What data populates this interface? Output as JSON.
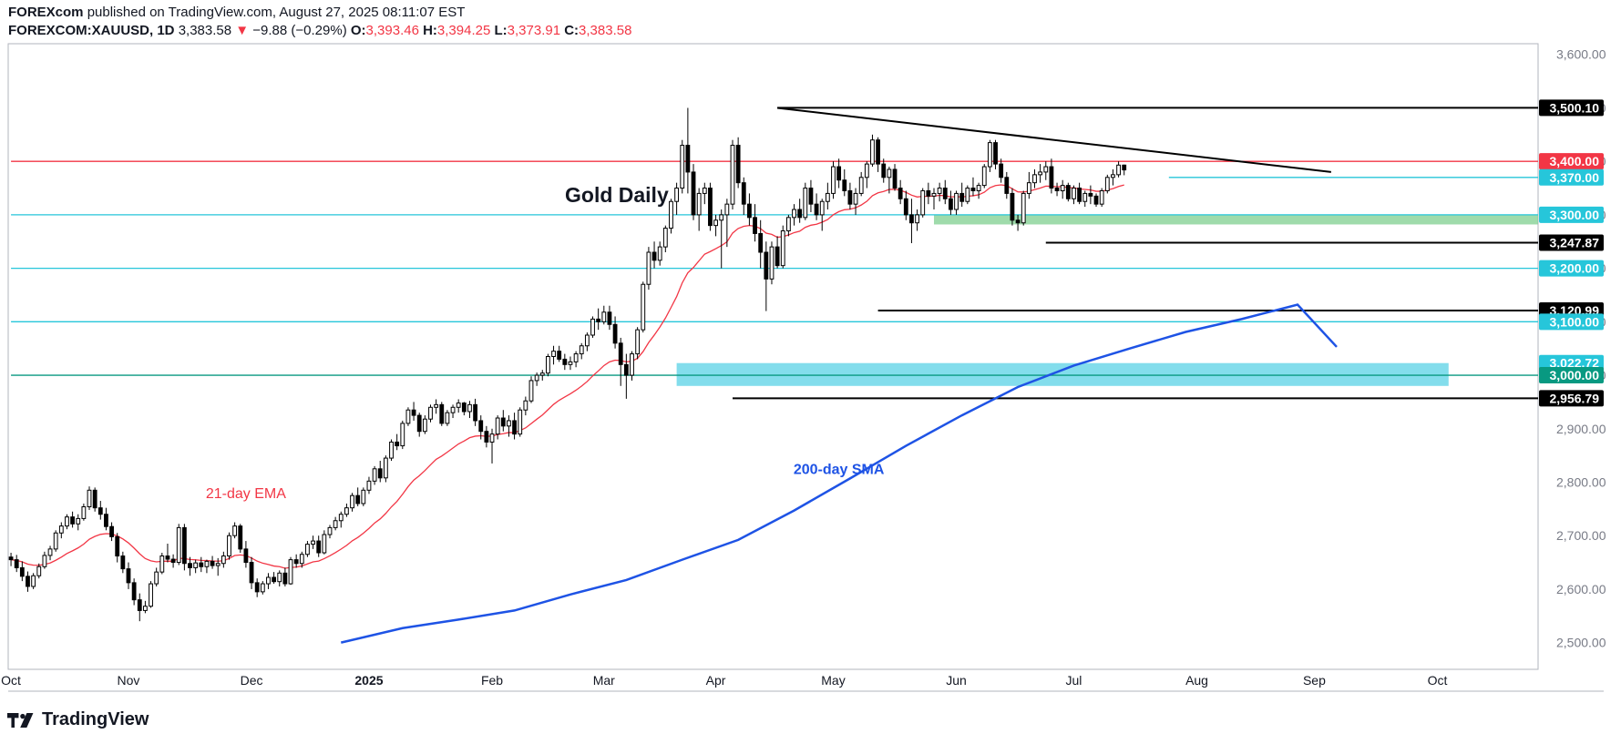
{
  "header": {
    "publisher": "FOREXcom",
    "published_text": "published on TradingView.com, August 27, 2025 08:11:07 EST",
    "symbol": "FOREXCOM:XAUUSD, 1D",
    "last": "3,383.58",
    "change_arrow": "▼",
    "change": "−9.88 (−0.29%)",
    "o_label": "O:",
    "o_value": "3,393.46",
    "h_label": "H:",
    "h_value": "3,394.25",
    "l_label": "L:",
    "l_value": "3,373.91",
    "c_label": "C:",
    "c_value": "3,383.58"
  },
  "footer": {
    "brand": "TradingView"
  },
  "colors": {
    "bull": "#ffffff",
    "bear": "#000000",
    "ema": "#f23645",
    "sma": "#1e53e5",
    "resistance": "#f23645",
    "support_cyan": "#26c6da",
    "support_green": "#089981",
    "zone_green": "#7fcf8f",
    "zone_cyan": "#5ad1e6"
  },
  "chart_data": {
    "type": "candlestick",
    "title": "Gold Daily",
    "y_axis": {
      "range": [
        2450,
        3620
      ],
      "ticks": [
        "3,600.00",
        "3,500.00",
        "3,400.00",
        "3,300.00",
        "3,200.00",
        "3,100.00",
        "3,000.00",
        "2,900.00",
        "2,800.00",
        "2,700.00",
        "2,600.00",
        "2,500.00"
      ],
      "tick_values": [
        3600,
        3500,
        3400,
        3300,
        3200,
        3100,
        3000,
        2900,
        2800,
        2700,
        2600,
        2500
      ]
    },
    "x_axis": {
      "labels": [
        "Oct",
        "Nov",
        "Dec",
        "2025",
        "Feb",
        "Mar",
        "Apr",
        "May",
        "Jun",
        "Jul",
        "Aug",
        "Sep",
        "Oct"
      ],
      "label_day_index": [
        0,
        21,
        43,
        64,
        86,
        106,
        126,
        147,
        169,
        190,
        212,
        233,
        255
      ],
      "range_days": [
        -0.5,
        273
      ]
    },
    "annotations": [
      {
        "text": "21-day EMA",
        "color": "#f23645",
        "day": 42,
        "value": 2770
      },
      {
        "text": "200-day SMA",
        "color": "#1e53e5",
        "day": 148,
        "value": 2815
      }
    ],
    "price_labels": [
      {
        "text": "3,500.10",
        "value": 3500.1,
        "bg": "#000000"
      },
      {
        "text": "3,400.00",
        "value": 3400.0,
        "bg": "#f23645"
      },
      {
        "text": "3,370.00",
        "value": 3370.0,
        "bg": "#26c6da"
      },
      {
        "text": "3,300.00",
        "value": 3300.0,
        "bg": "#26c6da"
      },
      {
        "text": "3,247.87",
        "value": 3247.87,
        "bg": "#000000"
      },
      {
        "text": "3,200.00",
        "value": 3200.0,
        "bg": "#26c6da"
      },
      {
        "text": "3,120.99",
        "value": 3120.99,
        "bg": "#000000"
      },
      {
        "text": "3,100.00",
        "value": 3100.0,
        "bg": "#26c6da"
      },
      {
        "text": "3,022.72",
        "value": 3022.72,
        "bg": "#26c6da"
      },
      {
        "text": "3,000.00",
        "value": 3000.0,
        "bg": "#089981"
      },
      {
        "text": "2,956.79",
        "value": 2956.79,
        "bg": "#000000"
      }
    ],
    "horizontal_lines": [
      {
        "value": 3400,
        "color": "#f23645",
        "from_day": 0
      },
      {
        "value": 3370,
        "color": "#26c6da",
        "from_day": 207
      },
      {
        "value": 3300,
        "color": "#26c6da",
        "from_day": 0
      },
      {
        "value": 3200,
        "color": "#26c6da",
        "from_day": 0
      },
      {
        "value": 3100,
        "color": "#26c6da",
        "from_day": 0
      },
      {
        "value": 3000,
        "color": "#089981",
        "from_day": 0
      },
      {
        "value": 3500.1,
        "color": "#000000",
        "from_day": 137
      },
      {
        "value": 3247.87,
        "color": "#000000",
        "from_day": 185
      },
      {
        "value": 3120.99,
        "color": "#000000",
        "from_day": 155
      },
      {
        "value": 2956.79,
        "color": "#000000",
        "from_day": 129
      }
    ],
    "trendline": {
      "from": [
        137,
        3500
      ],
      "to": [
        236,
        3380
      ],
      "color": "#000000"
    },
    "zones": [
      {
        "from_day": 165,
        "to_day": 273,
        "low": 3282,
        "high": 3300,
        "color": "#7fcf8f"
      },
      {
        "from_day": 119,
        "to_day": 257,
        "low": 2980,
        "high": 3022.72,
        "color": "#5ad1e6"
      }
    ],
    "sma200": [
      [
        59,
        2500
      ],
      [
        70,
        2527
      ],
      [
        80,
        2543
      ],
      [
        90,
        2560
      ],
      [
        100,
        2590
      ],
      [
        110,
        2617
      ],
      [
        120,
        2655
      ],
      [
        130,
        2692
      ],
      [
        140,
        2747
      ],
      [
        150,
        2807
      ],
      [
        160,
        2868
      ],
      [
        170,
        2925
      ],
      [
        180,
        2978
      ],
      [
        190,
        3018
      ],
      [
        200,
        3050
      ],
      [
        210,
        3081
      ],
      [
        220,
        3105
      ],
      [
        230,
        3132
      ],
      [
        237,
        3053
      ]
    ],
    "candles": [
      [
        2660,
        2668,
        2643,
        2655
      ],
      [
        2655,
        2664,
        2632,
        2640
      ],
      [
        2640,
        2652,
        2615,
        2624
      ],
      [
        2624,
        2633,
        2595,
        2605
      ],
      [
        2605,
        2630,
        2600,
        2625
      ],
      [
        2625,
        2648,
        2620,
        2642
      ],
      [
        2642,
        2670,
        2638,
        2663
      ],
      [
        2663,
        2681,
        2654,
        2675
      ],
      [
        2675,
        2710,
        2670,
        2705
      ],
      [
        2705,
        2725,
        2695,
        2718
      ],
      [
        2718,
        2740,
        2712,
        2735
      ],
      [
        2735,
        2745,
        2715,
        2722
      ],
      [
        2722,
        2740,
        2710,
        2732
      ],
      [
        2732,
        2760,
        2728,
        2754
      ],
      [
        2754,
        2792,
        2748,
        2785
      ],
      [
        2785,
        2790,
        2745,
        2752
      ],
      [
        2752,
        2765,
        2730,
        2740
      ],
      [
        2740,
        2752,
        2710,
        2717
      ],
      [
        2717,
        2725,
        2690,
        2698
      ],
      [
        2698,
        2705,
        2650,
        2662
      ],
      [
        2662,
        2670,
        2630,
        2638
      ],
      [
        2638,
        2650,
        2600,
        2612
      ],
      [
        2612,
        2620,
        2570,
        2580
      ],
      [
        2580,
        2592,
        2540,
        2560
      ],
      [
        2560,
        2578,
        2555,
        2568
      ],
      [
        2568,
        2615,
        2565,
        2610
      ],
      [
        2610,
        2640,
        2605,
        2632
      ],
      [
        2632,
        2668,
        2628,
        2662
      ],
      [
        2662,
        2685,
        2650,
        2656
      ],
      [
        2656,
        2665,
        2640,
        2650
      ],
      [
        2650,
        2722,
        2645,
        2715
      ],
      [
        2715,
        2722,
        2635,
        2648
      ],
      [
        2648,
        2660,
        2625,
        2640
      ],
      [
        2640,
        2655,
        2630,
        2649
      ],
      [
        2649,
        2660,
        2632,
        2642
      ],
      [
        2642,
        2655,
        2630,
        2652
      ],
      [
        2652,
        2662,
        2638,
        2644
      ],
      [
        2644,
        2658,
        2625,
        2648
      ],
      [
        2648,
        2670,
        2640,
        2662
      ],
      [
        2662,
        2706,
        2655,
        2700
      ],
      [
        2700,
        2725,
        2695,
        2718
      ],
      [
        2718,
        2722,
        2668,
        2675
      ],
      [
        2675,
        2690,
        2640,
        2650
      ],
      [
        2650,
        2660,
        2600,
        2612
      ],
      [
        2612,
        2620,
        2585,
        2595
      ],
      [
        2595,
        2615,
        2590,
        2610
      ],
      [
        2610,
        2630,
        2600,
        2622
      ],
      [
        2622,
        2632,
        2610,
        2614
      ],
      [
        2614,
        2635,
        2605,
        2630
      ],
      [
        2630,
        2640,
        2605,
        2610
      ],
      [
        2610,
        2660,
        2608,
        2655
      ],
      [
        2655,
        2665,
        2640,
        2648
      ],
      [
        2648,
        2670,
        2640,
        2665
      ],
      [
        2665,
        2690,
        2660,
        2684
      ],
      [
        2684,
        2700,
        2675,
        2690
      ],
      [
        2690,
        2700,
        2660,
        2668
      ],
      [
        2668,
        2710,
        2665,
        2702
      ],
      [
        2702,
        2720,
        2695,
        2715
      ],
      [
        2715,
        2735,
        2710,
        2728
      ],
      [
        2728,
        2745,
        2715,
        2740
      ],
      [
        2740,
        2760,
        2735,
        2752
      ],
      [
        2752,
        2780,
        2745,
        2775
      ],
      [
        2775,
        2790,
        2755,
        2760
      ],
      [
        2760,
        2790,
        2755,
        2785
      ],
      [
        2785,
        2810,
        2778,
        2802
      ],
      [
        2802,
        2830,
        2795,
        2825
      ],
      [
        2825,
        2840,
        2800,
        2808
      ],
      [
        2808,
        2850,
        2800,
        2845
      ],
      [
        2845,
        2880,
        2840,
        2875
      ],
      [
        2875,
        2890,
        2860,
        2868
      ],
      [
        2868,
        2915,
        2862,
        2910
      ],
      [
        2910,
        2940,
        2905,
        2935
      ],
      [
        2935,
        2950,
        2915,
        2925
      ],
      [
        2925,
        2930,
        2885,
        2895
      ],
      [
        2895,
        2925,
        2890,
        2918
      ],
      [
        2918,
        2945,
        2912,
        2940
      ],
      [
        2940,
        2955,
        2928,
        2945
      ],
      [
        2945,
        2950,
        2905,
        2910
      ],
      [
        2910,
        2935,
        2905,
        2930
      ],
      [
        2930,
        2945,
        2920,
        2940
      ],
      [
        2940,
        2955,
        2930,
        2948
      ],
      [
        2948,
        2950,
        2925,
        2932
      ],
      [
        2932,
        2952,
        2920,
        2945
      ],
      [
        2945,
        2956,
        2905,
        2915
      ],
      [
        2915,
        2925,
        2880,
        2895
      ],
      [
        2895,
        2905,
        2865,
        2875
      ],
      [
        2875,
        2900,
        2835,
        2890
      ],
      [
        2890,
        2925,
        2880,
        2920
      ],
      [
        2920,
        2935,
        2895,
        2905
      ],
      [
        2905,
        2925,
        2885,
        2915
      ],
      [
        2915,
        2930,
        2880,
        2890
      ],
      [
        2890,
        2940,
        2885,
        2935
      ],
      [
        2935,
        2960,
        2925,
        2952
      ],
      [
        2952,
        2998,
        2948,
        2990
      ],
      [
        2990,
        3005,
        2980,
        3000
      ],
      [
        3000,
        3010,
        2990,
        3004
      ],
      [
        3004,
        3040,
        2998,
        3035
      ],
      [
        3035,
        3055,
        3020,
        3045
      ],
      [
        3045,
        3055,
        3025,
        3030
      ],
      [
        3030,
        3040,
        3010,
        3020
      ],
      [
        3020,
        3035,
        3010,
        3025
      ],
      [
        3025,
        3045,
        3015,
        3040
      ],
      [
        3040,
        3060,
        3030,
        3055
      ],
      [
        3055,
        3080,
        3045,
        3075
      ],
      [
        3075,
        3110,
        3070,
        3105
      ],
      [
        3105,
        3125,
        3085,
        3100
      ],
      [
        3100,
        3130,
        3095,
        3118
      ],
      [
        3118,
        3130,
        3085,
        3095
      ],
      [
        3095,
        3110,
        3050,
        3060
      ],
      [
        3060,
        3070,
        2980,
        3020
      ],
      [
        3020,
        3040,
        2956,
        3000
      ],
      [
        3000,
        3045,
        2990,
        3040
      ],
      [
        3040,
        3090,
        3030,
        3085
      ],
      [
        3085,
        3175,
        3080,
        3170
      ],
      [
        3170,
        3240,
        3160,
        3230
      ],
      [
        3230,
        3250,
        3200,
        3215
      ],
      [
        3215,
        3250,
        3205,
        3240
      ],
      [
        3240,
        3280,
        3230,
        3275
      ],
      [
        3275,
        3330,
        3265,
        3325
      ],
      [
        3325,
        3360,
        3300,
        3350
      ],
      [
        3350,
        3440,
        3340,
        3430
      ],
      [
        3430,
        3500,
        3340,
        3380
      ],
      [
        3380,
        3395,
        3290,
        3300
      ],
      [
        3300,
        3350,
        3270,
        3340
      ],
      [
        3340,
        3360,
        3320,
        3350
      ],
      [
        3350,
        3360,
        3270,
        3280
      ],
      [
        3280,
        3300,
        3260,
        3290
      ],
      [
        3290,
        3310,
        3200,
        3300
      ],
      [
        3300,
        3330,
        3240,
        3320
      ],
      [
        3320,
        3440,
        3310,
        3430
      ],
      [
        3430,
        3445,
        3350,
        3360
      ],
      [
        3360,
        3370,
        3300,
        3320
      ],
      [
        3320,
        3340,
        3280,
        3295
      ],
      [
        3295,
        3320,
        3250,
        3265
      ],
      [
        3265,
        3290,
        3200,
        3230
      ],
      [
        3230,
        3250,
        3120,
        3180
      ],
      [
        3180,
        3250,
        3170,
        3240
      ],
      [
        3240,
        3260,
        3200,
        3205
      ],
      [
        3205,
        3280,
        3200,
        3270
      ],
      [
        3270,
        3300,
        3260,
        3295
      ],
      [
        3295,
        3320,
        3280,
        3310
      ],
      [
        3310,
        3330,
        3285,
        3295
      ],
      [
        3295,
        3360,
        3290,
        3350
      ],
      [
        3350,
        3365,
        3305,
        3320
      ],
      [
        3320,
        3340,
        3290,
        3300
      ],
      [
        3300,
        3330,
        3270,
        3325
      ],
      [
        3325,
        3360,
        3310,
        3340
      ],
      [
        3340,
        3400,
        3330,
        3390
      ],
      [
        3390,
        3405,
        3350,
        3365
      ],
      [
        3365,
        3385,
        3335,
        3345
      ],
      [
        3345,
        3360,
        3310,
        3320
      ],
      [
        3320,
        3350,
        3300,
        3340
      ],
      [
        3340,
        3380,
        3335,
        3370
      ],
      [
        3370,
        3400,
        3350,
        3395
      ],
      [
        3395,
        3450,
        3390,
        3440
      ],
      [
        3440,
        3445,
        3380,
        3395
      ],
      [
        3395,
        3405,
        3360,
        3370
      ],
      [
        3370,
        3390,
        3340,
        3385
      ],
      [
        3385,
        3395,
        3345,
        3350
      ],
      [
        3350,
        3365,
        3320,
        3330
      ],
      [
        3330,
        3345,
        3290,
        3300
      ],
      [
        3300,
        3330,
        3247,
        3285
      ],
      [
        3285,
        3310,
        3270,
        3300
      ],
      [
        3300,
        3350,
        3295,
        3345
      ],
      [
        3345,
        3360,
        3320,
        3335
      ],
      [
        3335,
        3350,
        3310,
        3340
      ],
      [
        3340,
        3360,
        3325,
        3350
      ],
      [
        3350,
        3365,
        3320,
        3330
      ],
      [
        3330,
        3345,
        3300,
        3310
      ],
      [
        3310,
        3345,
        3300,
        3340
      ],
      [
        3340,
        3360,
        3315,
        3325
      ],
      [
        3325,
        3355,
        3320,
        3350
      ],
      [
        3350,
        3370,
        3335,
        3345
      ],
      [
        3345,
        3360,
        3330,
        3355
      ],
      [
        3355,
        3395,
        3350,
        3390
      ],
      [
        3390,
        3440,
        3380,
        3435
      ],
      [
        3435,
        3440,
        3385,
        3395
      ],
      [
        3395,
        3405,
        3360,
        3370
      ],
      [
        3370,
        3380,
        3330,
        3340
      ],
      [
        3340,
        3350,
        3280,
        3290
      ],
      [
        3290,
        3300,
        3270,
        3285
      ],
      [
        3285,
        3345,
        3280,
        3340
      ],
      [
        3340,
        3380,
        3330,
        3360
      ],
      [
        3360,
        3385,
        3350,
        3375
      ],
      [
        3375,
        3395,
        3360,
        3380
      ],
      [
        3380,
        3400,
        3365,
        3390
      ],
      [
        3390,
        3405,
        3340,
        3350
      ],
      [
        3350,
        3360,
        3335,
        3345
      ],
      [
        3345,
        3365,
        3330,
        3355
      ],
      [
        3355,
        3360,
        3325,
        3330
      ],
      [
        3330,
        3355,
        3320,
        3350
      ],
      [
        3350,
        3360,
        3320,
        3325
      ],
      [
        3325,
        3345,
        3315,
        3340
      ],
      [
        3340,
        3355,
        3320,
        3335
      ],
      [
        3335,
        3340,
        3315,
        3320
      ],
      [
        3320,
        3350,
        3315,
        3345
      ],
      [
        3345,
        3375,
        3340,
        3370
      ],
      [
        3370,
        3385,
        3355,
        3375
      ],
      [
        3375,
        3400,
        3370,
        3393
      ],
      [
        3393,
        3394,
        3374,
        3384
      ]
    ]
  }
}
